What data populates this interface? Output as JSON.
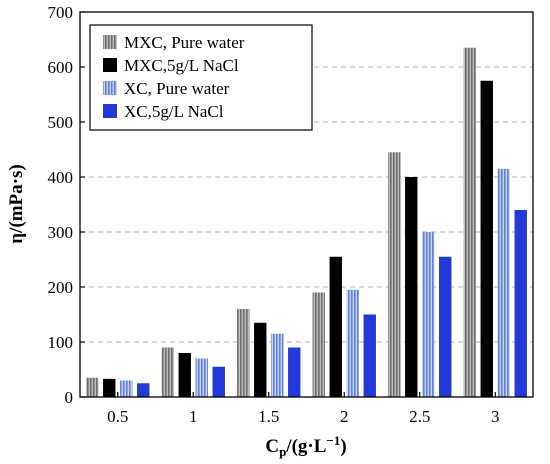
{
  "chart_data": {
    "type": "bar",
    "title": "",
    "xlabel": "C",
    "xlabel_sub": "p",
    "xlabel_rest": "/(g·L",
    "xlabel_sup": "−1",
    "xlabel_end": ")",
    "ylabel": "η/(mPa·s)",
    "categories": [
      "0.5",
      "1",
      "1.5",
      "2",
      "2.5",
      "3"
    ],
    "ylim": [
      0,
      700
    ],
    "yticks": [
      "0",
      "100",
      "200",
      "300",
      "400",
      "500",
      "600",
      "700"
    ],
    "grid": "horizontal dashed",
    "legend_position": "top-left",
    "series": [
      {
        "name": "MXC, Pure water",
        "color": "#8a8a8a",
        "pattern": "gray-stripes",
        "values": [
          35,
          90,
          160,
          190,
          445,
          635
        ]
      },
      {
        "name": "MXC,5g/L NaCl",
        "color": "#000000",
        "pattern": "solid",
        "values": [
          33,
          80,
          135,
          255,
          400,
          575
        ]
      },
      {
        "name": "XC, Pure water",
        "color": "#7f97e6",
        "pattern": "blue-stripes",
        "values": [
          30,
          70,
          115,
          195,
          300,
          415
        ]
      },
      {
        "name": "XC,5g/L NaCl",
        "color": "#2238d8",
        "pattern": "solid",
        "values": [
          25,
          55,
          90,
          150,
          255,
          340
        ]
      }
    ]
  }
}
